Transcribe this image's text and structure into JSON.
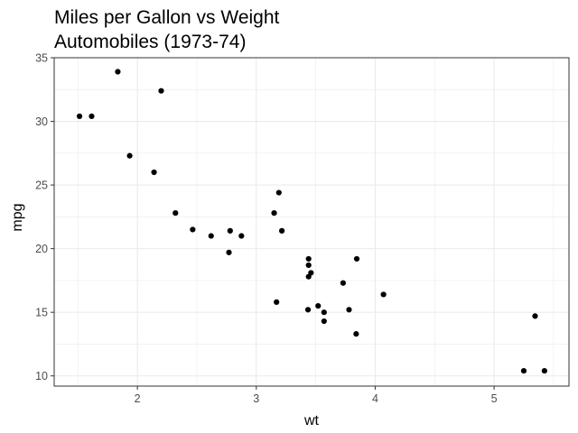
{
  "chart_data": {
    "type": "scatter",
    "title": "Miles per Gallon vs Weight",
    "subtitle": "Automobiles (1973-74)",
    "xlabel": "wt",
    "ylabel": "mpg",
    "xlim": [
      1.3,
      5.63
    ],
    "ylim": [
      9.2,
      35.0
    ],
    "x_ticks": [
      2,
      3,
      4,
      5
    ],
    "y_ticks": [
      10,
      15,
      20,
      25,
      30,
      35
    ],
    "x_minor_ticks": [
      1.5,
      2.5,
      3.5,
      4.5,
      5.5
    ],
    "y_minor_ticks": [
      12.5,
      17.5,
      22.5,
      27.5,
      32.5
    ],
    "grid": true,
    "point_color": "#000000",
    "points": [
      {
        "x": 2.62,
        "y": 21.0
      },
      {
        "x": 2.875,
        "y": 21.0
      },
      {
        "x": 2.32,
        "y": 22.8
      },
      {
        "x": 3.215,
        "y": 21.4
      },
      {
        "x": 3.44,
        "y": 18.7
      },
      {
        "x": 3.46,
        "y": 18.1
      },
      {
        "x": 3.57,
        "y": 14.3
      },
      {
        "x": 3.19,
        "y": 24.4
      },
      {
        "x": 3.15,
        "y": 22.8
      },
      {
        "x": 3.44,
        "y": 19.2
      },
      {
        "x": 3.44,
        "y": 17.8
      },
      {
        "x": 4.07,
        "y": 16.4
      },
      {
        "x": 3.73,
        "y": 17.3
      },
      {
        "x": 3.78,
        "y": 15.2
      },
      {
        "x": 5.25,
        "y": 10.4
      },
      {
        "x": 5.424,
        "y": 10.4
      },
      {
        "x": 5.345,
        "y": 14.7
      },
      {
        "x": 2.2,
        "y": 32.4
      },
      {
        "x": 1.615,
        "y": 30.4
      },
      {
        "x": 1.835,
        "y": 33.9
      },
      {
        "x": 2.465,
        "y": 21.5
      },
      {
        "x": 3.52,
        "y": 15.5
      },
      {
        "x": 3.435,
        "y": 15.2
      },
      {
        "x": 3.84,
        "y": 13.3
      },
      {
        "x": 3.845,
        "y": 19.2
      },
      {
        "x": 1.935,
        "y": 27.3
      },
      {
        "x": 2.14,
        "y": 26.0
      },
      {
        "x": 1.513,
        "y": 30.4
      },
      {
        "x": 3.17,
        "y": 15.8
      },
      {
        "x": 2.77,
        "y": 19.7
      },
      {
        "x": 3.57,
        "y": 15.0
      },
      {
        "x": 2.78,
        "y": 21.4
      }
    ]
  }
}
